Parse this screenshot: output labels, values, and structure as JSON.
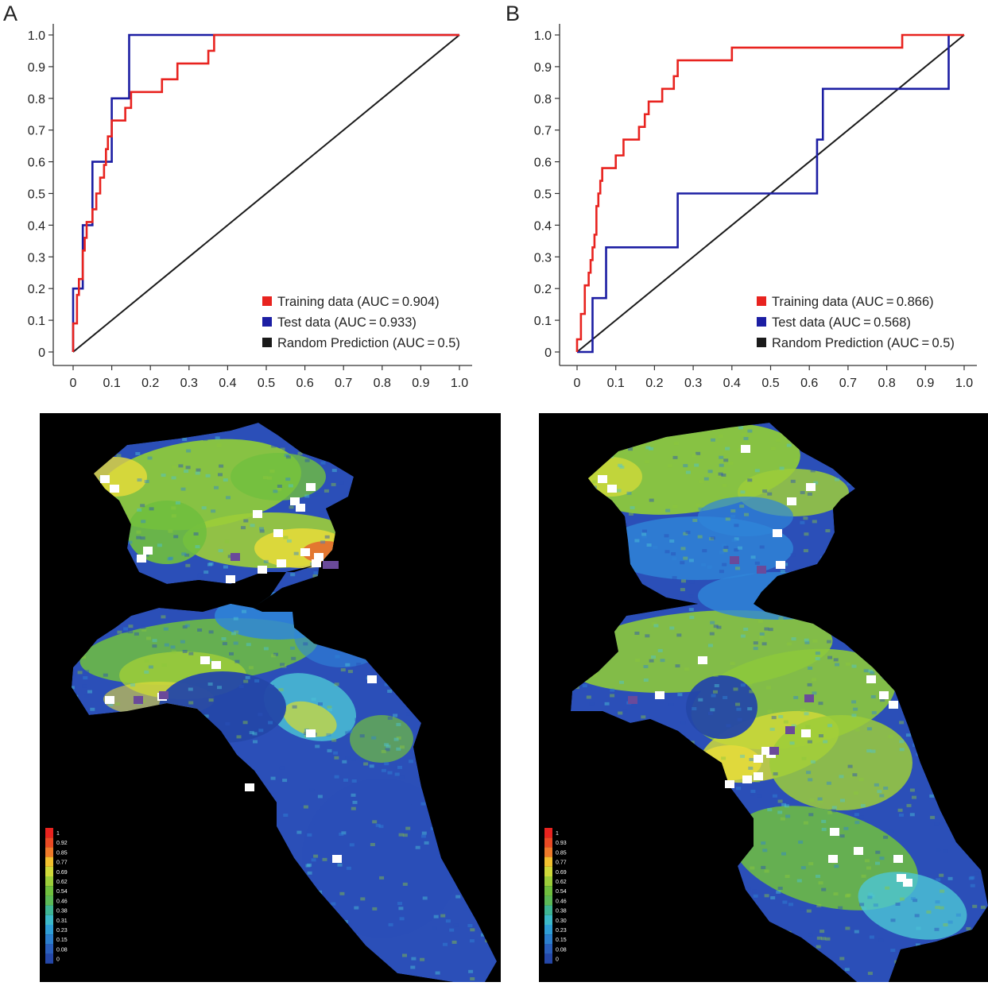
{
  "panels": [
    {
      "letter": "A"
    },
    {
      "letter": "B"
    }
  ],
  "colors": {
    "training": "#e8231f",
    "test": "#1c1ea3",
    "random": "#1a1a1a",
    "map_background": "#000000",
    "map_deep_blue": "#2b4fb8",
    "map_mid_blue": "#2f86d8",
    "map_cyan": "#4cc6d6",
    "map_green": "#8cc83c",
    "map_yellow": "#e8dc3a",
    "map_red": "#e8372a",
    "marker_white": "#ffffff",
    "marker_purple": "#6a4a9a"
  },
  "chart_data": [
    {
      "type": "line",
      "panel": "A",
      "xlim": [
        0,
        1.0
      ],
      "ylim": [
        0,
        1.0
      ],
      "xticks": [
        "0",
        "0.1",
        "0.2",
        "0.3",
        "0.4",
        "0.5",
        "0.6",
        "0.7",
        "0.8",
        "0.9",
        "1.0"
      ],
      "yticks": [
        "0",
        "0.1",
        "0.2",
        "0.3",
        "0.4",
        "0.5",
        "0.6",
        "0.7",
        "0.8",
        "0.9",
        "1.0"
      ],
      "legend_position": "bottom-right",
      "series": [
        {
          "name": "Training data (AUC = 0.904)",
          "color": "#e8231f",
          "points": [
            [
              0,
              0
            ],
            [
              0,
              0.09
            ],
            [
              0.01,
              0.09
            ],
            [
              0.01,
              0.18
            ],
            [
              0.015,
              0.18
            ],
            [
              0.015,
              0.23
            ],
            [
              0.025,
              0.23
            ],
            [
              0.025,
              0.32
            ],
            [
              0.03,
              0.32
            ],
            [
              0.03,
              0.36
            ],
            [
              0.035,
              0.36
            ],
            [
              0.035,
              0.41
            ],
            [
              0.05,
              0.41
            ],
            [
              0.05,
              0.45
            ],
            [
              0.06,
              0.45
            ],
            [
              0.06,
              0.5
            ],
            [
              0.07,
              0.5
            ],
            [
              0.07,
              0.55
            ],
            [
              0.08,
              0.55
            ],
            [
              0.08,
              0.59
            ],
            [
              0.085,
              0.59
            ],
            [
              0.085,
              0.64
            ],
            [
              0.09,
              0.64
            ],
            [
              0.09,
              0.68
            ],
            [
              0.1,
              0.68
            ],
            [
              0.1,
              0.73
            ],
            [
              0.135,
              0.73
            ],
            [
              0.135,
              0.77
            ],
            [
              0.15,
              0.77
            ],
            [
              0.15,
              0.82
            ],
            [
              0.23,
              0.82
            ],
            [
              0.23,
              0.86
            ],
            [
              0.27,
              0.86
            ],
            [
              0.27,
              0.91
            ],
            [
              0.35,
              0.91
            ],
            [
              0.35,
              0.95
            ],
            [
              0.365,
              0.95
            ],
            [
              0.365,
              1.0
            ],
            [
              1.0,
              1.0
            ]
          ]
        },
        {
          "name": "Test data (AUC = 0.933)",
          "color": "#1c1ea3",
          "points": [
            [
              0,
              0
            ],
            [
              0,
              0.2
            ],
            [
              0.015,
              0.2
            ],
            [
              0.015,
              0.2
            ],
            [
              0.025,
              0.2
            ],
            [
              0.025,
              0.4
            ],
            [
              0.05,
              0.4
            ],
            [
              0.05,
              0.6
            ],
            [
              0.1,
              0.6
            ],
            [
              0.1,
              0.8
            ],
            [
              0.145,
              0.8
            ],
            [
              0.145,
              1.0
            ],
            [
              1.0,
              1.0
            ]
          ]
        },
        {
          "name": "Random Prediction (AUC = 0.5)",
          "color": "#1a1a1a",
          "points": [
            [
              0,
              0
            ],
            [
              1.0,
              1.0
            ]
          ]
        }
      ]
    },
    {
      "type": "line",
      "panel": "B",
      "xlim": [
        0,
        1.0
      ],
      "ylim": [
        0,
        1.0
      ],
      "xticks": [
        "0",
        "0.1",
        "0.2",
        "0.3",
        "0.4",
        "0.5",
        "0.6",
        "0.7",
        "0.8",
        "0.9",
        "1.0"
      ],
      "yticks": [
        "0",
        "0.1",
        "0.2",
        "0.3",
        "0.4",
        "0.5",
        "0.6",
        "0.7",
        "0.8",
        "0.9",
        "1.0"
      ],
      "legend_position": "bottom-right",
      "series": [
        {
          "name": "Training data (AUC = 0.866)",
          "color": "#e8231f",
          "points": [
            [
              0,
              0
            ],
            [
              0,
              0.04
            ],
            [
              0.01,
              0.04
            ],
            [
              0.01,
              0.12
            ],
            [
              0.02,
              0.12
            ],
            [
              0.02,
              0.21
            ],
            [
              0.03,
              0.21
            ],
            [
              0.03,
              0.25
            ],
            [
              0.035,
              0.25
            ],
            [
              0.035,
              0.29
            ],
            [
              0.04,
              0.29
            ],
            [
              0.04,
              0.33
            ],
            [
              0.045,
              0.33
            ],
            [
              0.045,
              0.37
            ],
            [
              0.05,
              0.37
            ],
            [
              0.05,
              0.46
            ],
            [
              0.055,
              0.46
            ],
            [
              0.055,
              0.5
            ],
            [
              0.06,
              0.5
            ],
            [
              0.06,
              0.54
            ],
            [
              0.065,
              0.54
            ],
            [
              0.065,
              0.58
            ],
            [
              0.1,
              0.58
            ],
            [
              0.1,
              0.62
            ],
            [
              0.12,
              0.62
            ],
            [
              0.12,
              0.67
            ],
            [
              0.16,
              0.67
            ],
            [
              0.16,
              0.71
            ],
            [
              0.175,
              0.71
            ],
            [
              0.175,
              0.75
            ],
            [
              0.185,
              0.75
            ],
            [
              0.185,
              0.79
            ],
            [
              0.22,
              0.79
            ],
            [
              0.22,
              0.83
            ],
            [
              0.25,
              0.83
            ],
            [
              0.25,
              0.87
            ],
            [
              0.26,
              0.87
            ],
            [
              0.26,
              0.92
            ],
            [
              0.4,
              0.92
            ],
            [
              0.4,
              0.96
            ],
            [
              0.84,
              0.96
            ],
            [
              0.84,
              1.0
            ],
            [
              1.0,
              1.0
            ]
          ]
        },
        {
          "name": "Test data (AUC = 0.568)",
          "color": "#1c1ea3",
          "points": [
            [
              0,
              0
            ],
            [
              0.04,
              0
            ],
            [
              0.04,
              0.17
            ],
            [
              0.075,
              0.17
            ],
            [
              0.075,
              0.33
            ],
            [
              0.26,
              0.33
            ],
            [
              0.26,
              0.5
            ],
            [
              0.62,
              0.5
            ],
            [
              0.62,
              0.67
            ],
            [
              0.635,
              0.67
            ],
            [
              0.635,
              0.83
            ],
            [
              0.96,
              0.83
            ],
            [
              0.96,
              1.0
            ]
          ]
        },
        {
          "name": "Random Prediction (AUC = 0.5)",
          "color": "#1a1a1a",
          "points": [
            [
              0,
              0
            ],
            [
              1.0,
              1.0
            ]
          ]
        }
      ]
    }
  ],
  "maps": [
    {
      "panel": "A",
      "scale_labels": [
        "1",
        "0.92",
        "0.85",
        "0.77",
        "0.69",
        "0.62",
        "0.54",
        "0.46",
        "0.38",
        "0.31",
        "0.23",
        "0.15",
        "0.08",
        "0"
      ]
    },
    {
      "panel": "B",
      "scale_labels": [
        "1",
        "0.93",
        "0.85",
        "0.77",
        "0.69",
        "0.62",
        "0.54",
        "0.46",
        "0.38",
        "0.30",
        "0.23",
        "0.15",
        "0.08",
        "0"
      ]
    }
  ]
}
